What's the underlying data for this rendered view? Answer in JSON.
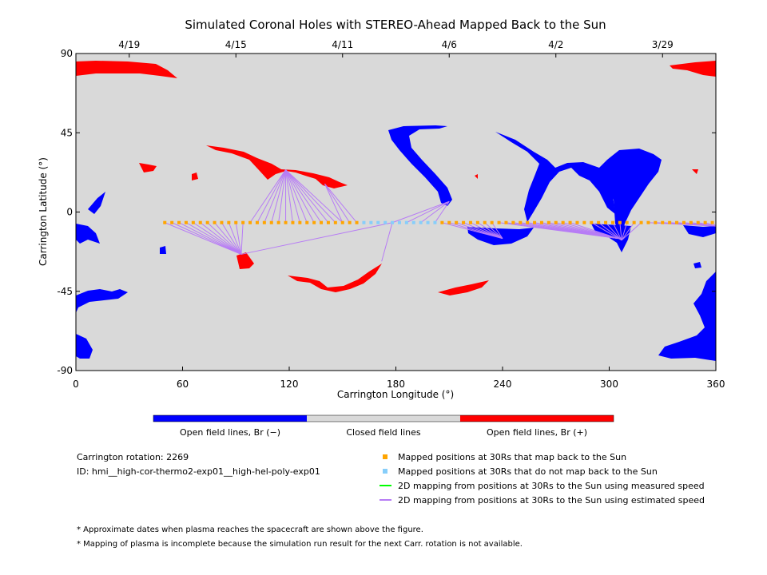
{
  "chart_data": {
    "type": "scatter",
    "title": "Simulated Coronal Holes with STEREO-Ahead Mapped Back to the Sun",
    "xlabel": "Carrington Longitude (°)",
    "ylabel": "Carrington Latitude (°)",
    "xlim": [
      0,
      360
    ],
    "ylim": [
      -90,
      90
    ],
    "x_ticks": [
      "0",
      "60",
      "120",
      "180",
      "240",
      "300",
      "360"
    ],
    "y_ticks": [
      "90",
      "45",
      "0",
      "-45",
      "-90"
    ],
    "top_axis_dates": [
      {
        "label": "4/19",
        "lon": 30
      },
      {
        "label": "4/15",
        "lon": 90
      },
      {
        "label": "4/11",
        "lon": 150
      },
      {
        "label": "4/6",
        "lon": 210
      },
      {
        "label": "4/2",
        "lon": 270
      },
      {
        "label": "3/29",
        "lon": 330
      }
    ],
    "colorbar": {
      "labels": [
        "Open field lines, Br (−)",
        "Closed field lines",
        "Open field lines, Br (+)"
      ],
      "colors": [
        "#0000ff",
        "#d9d9d9",
        "#ff0000"
      ]
    },
    "mapped_positions": {
      "lat": -6,
      "maps_back_lon": [
        50,
        54,
        58,
        62,
        66,
        70,
        74,
        78,
        82,
        86,
        90,
        94,
        98,
        102,
        106,
        110,
        114,
        118,
        122,
        126,
        130,
        134,
        138,
        142,
        146,
        150,
        154,
        158,
        206,
        210,
        214,
        218,
        222,
        226,
        230,
        234,
        238,
        242,
        246,
        250,
        254,
        258,
        262,
        266,
        270,
        274,
        278,
        282,
        286,
        290,
        294,
        298,
        302,
        306,
        310,
        314,
        318,
        322,
        326,
        330,
        334,
        338,
        342,
        346,
        350,
        354,
        358
      ],
      "no_map_lon": [
        162,
        166,
        170,
        174,
        178,
        182,
        186,
        190,
        194,
        198,
        202
      ]
    },
    "estimated_speed_mapping_targets": [
      {
        "from_lon": [
          50,
          94
        ],
        "to_lon": 93,
        "to_lat": -24
      },
      {
        "from_lon": [
          98,
          150
        ],
        "to_lon": 118,
        "to_lat": 24
      },
      {
        "from_lon": [
          150,
          160
        ],
        "to_lon": 140,
        "to_lat": 16
      },
      {
        "from_lon": [
          178,
          204
        ],
        "to_lon": 210,
        "to_lat": 6
      },
      {
        "from_lon": [
          206,
          236
        ],
        "to_lon": 240,
        "to_lat": -15
      },
      {
        "from_lon": [
          238,
          280
        ],
        "to_lon": 305,
        "to_lat": -15
      },
      {
        "from_lon": [
          290,
          320
        ],
        "to_lon": 307,
        "to_lat": -16
      },
      {
        "from_lon": [
          322,
          360
        ],
        "to_lon": 360,
        "to_lat": -8
      }
    ],
    "colors": {
      "open_neg": "#0000ff",
      "open_pos": "#ff0000",
      "closed": "#d9d9d9",
      "maps_back": "#ffa500",
      "no_map": "#87cefa",
      "measured": "#00ff00",
      "estimated": "#b77cf5"
    }
  },
  "info": {
    "rotation": "Carrington rotation: 2269",
    "id": "ID: hmi__high-cor-thermo2-exp01__high-hel-poly-exp01"
  },
  "legend": {
    "maps_back": "Mapped positions at 30Rs that map back to the Sun",
    "no_map": "Mapped positions at 30Rs that do not map back to the Sun",
    "measured": "2D mapping from positions at 30Rs to the Sun using measured speed",
    "estimated": "2D mapping from positions at 30Rs to the Sun using estimated speed"
  },
  "notes": [
    "* Approximate dates when plasma reaches the spacecraft are shown above the figure.",
    "* Mapping of plasma is incomplete because the simulation run result for the next Carr. rotation is not available."
  ]
}
